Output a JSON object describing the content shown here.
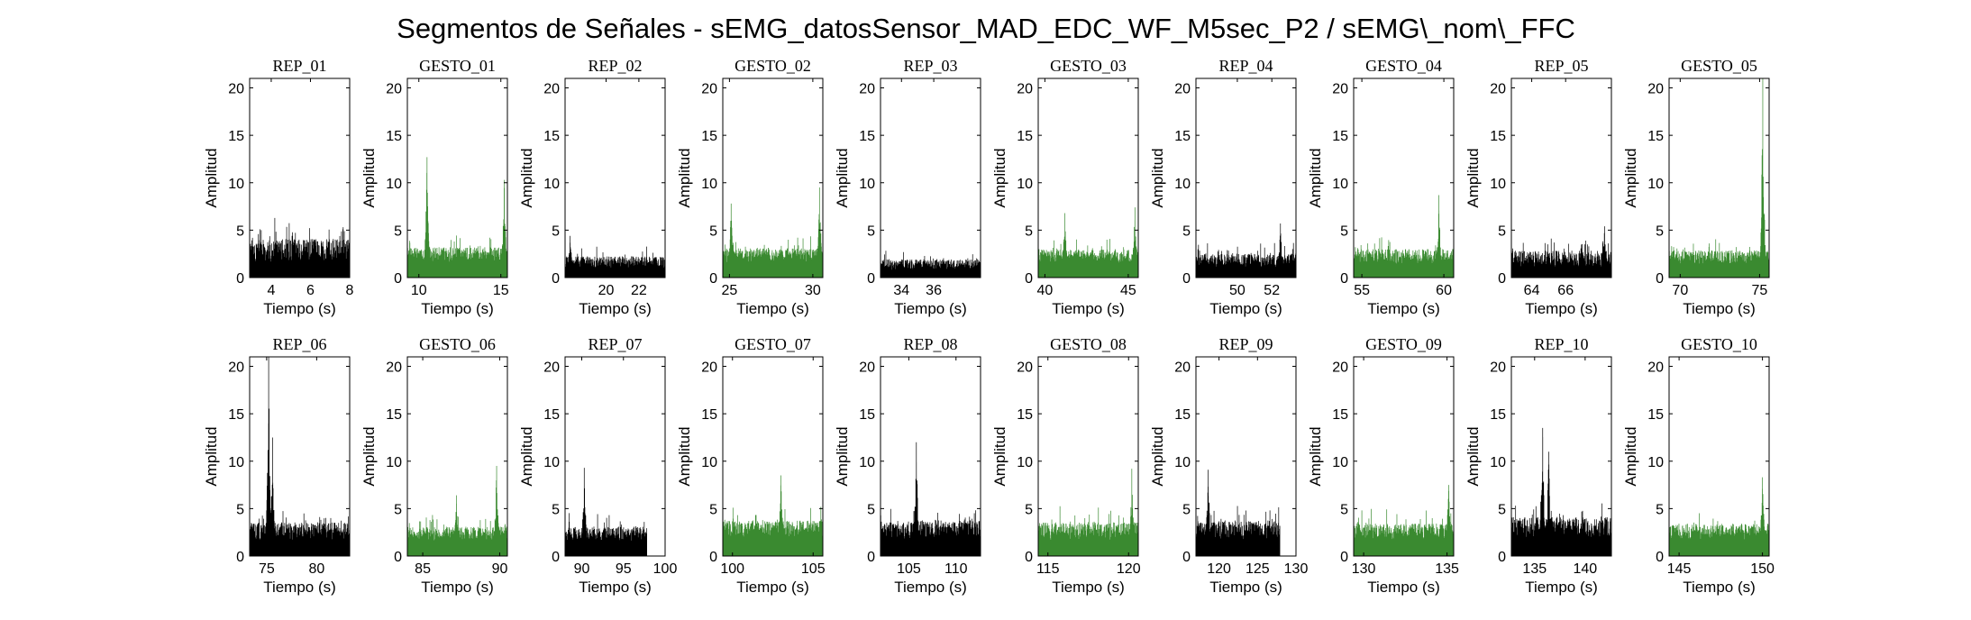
{
  "chart_data": {
    "type": "bar",
    "title": "Segmentos de Señales - sEMG_datosSensor_MAD_EDC_WF_M5sec_P2 / sEMG\\_nom\\_FFC",
    "xlabel": "Tiempo (s)",
    "ylabel": "Amplitud",
    "ylim": [
      0,
      21
    ],
    "yticks": [
      0,
      5,
      10,
      15,
      20
    ],
    "colors": {
      "REP": "#000000",
      "GESTO": "#3a8a30"
    },
    "panels": [
      {
        "title": "REP_01",
        "kind": "REP",
        "xlim": [
          2.9,
          8.0
        ],
        "xticks": [
          4,
          6,
          8
        ],
        "t_start": 2.9,
        "t_end": 8.0,
        "baseline": 2.0,
        "noise": 1.6,
        "bursts": []
      },
      {
        "title": "GESTO_01",
        "kind": "GESTO",
        "xlim": [
          9.3,
          15.4
        ],
        "xticks": [
          10,
          15
        ],
        "t_start": 9.3,
        "t_end": 15.4,
        "baseline": 1.9,
        "noise": 1.0,
        "bursts": [
          {
            "t": 10.5,
            "amp": 12.7
          },
          {
            "t": 15.2,
            "amp": 10.3
          }
        ]
      },
      {
        "title": "REP_02",
        "kind": "REP",
        "xlim": [
          17.5,
          23.6
        ],
        "xticks": [
          20,
          22
        ],
        "t_start": 17.5,
        "t_end": 23.6,
        "baseline": 1.2,
        "noise": 0.8,
        "bursts": [
          {
            "t": 17.8,
            "amp": 4.4
          }
        ]
      },
      {
        "title": "GESTO_02",
        "kind": "GESTO",
        "xlim": [
          24.6,
          30.6
        ],
        "xticks": [
          25,
          30
        ],
        "t_start": 24.6,
        "t_end": 30.6,
        "baseline": 1.9,
        "noise": 0.9,
        "bursts": [
          {
            "t": 25.1,
            "amp": 7.8
          },
          {
            "t": 30.4,
            "amp": 9.5
          }
        ]
      },
      {
        "title": "REP_03",
        "kind": "REP",
        "xlim": [
          32.7,
          38.9
        ],
        "xticks": [
          34,
          36
        ],
        "t_start": 32.7,
        "t_end": 38.9,
        "baseline": 1.0,
        "noise": 0.7,
        "bursts": []
      },
      {
        "title": "GESTO_03",
        "kind": "GESTO",
        "xlim": [
          39.6,
          45.6
        ],
        "xticks": [
          40,
          45
        ],
        "t_start": 39.6,
        "t_end": 45.6,
        "baseline": 1.8,
        "noise": 0.9,
        "bursts": [
          {
            "t": 41.2,
            "amp": 6.8
          },
          {
            "t": 45.4,
            "amp": 7.4
          }
        ]
      },
      {
        "title": "REP_04",
        "kind": "REP",
        "xlim": [
          47.6,
          53.4
        ],
        "xticks": [
          50,
          52
        ],
        "t_start": 47.6,
        "t_end": 53.4,
        "baseline": 1.3,
        "noise": 1.0,
        "bursts": [
          {
            "t": 52.5,
            "amp": 5.7
          }
        ]
      },
      {
        "title": "GESTO_04",
        "kind": "GESTO",
        "xlim": [
          54.5,
          60.6
        ],
        "xticks": [
          55,
          60
        ],
        "t_start": 54.5,
        "t_end": 60.6,
        "baseline": 1.7,
        "noise": 1.0,
        "bursts": [
          {
            "t": 59.7,
            "amp": 8.7
          }
        ]
      },
      {
        "title": "REP_05",
        "kind": "REP",
        "xlim": [
          62.8,
          68.7
        ],
        "xticks": [
          64,
          66
        ],
        "t_start": 62.8,
        "t_end": 68.7,
        "baseline": 1.4,
        "noise": 1.1,
        "bursts": [
          {
            "t": 68.3,
            "amp": 5.4
          }
        ]
      },
      {
        "title": "GESTO_05",
        "kind": "GESTO",
        "xlim": [
          69.3,
          75.6
        ],
        "xticks": [
          70,
          75
        ],
        "t_start": 69.3,
        "t_end": 75.6,
        "baseline": 1.7,
        "noise": 0.9,
        "bursts": [
          {
            "t": 75.2,
            "amp": 21.0
          }
        ]
      },
      {
        "title": "REP_06",
        "kind": "REP",
        "xlim": [
          73.3,
          83.3
        ],
        "xticks": [
          75,
          80
        ],
        "t_start": 73.3,
        "t_end": 83.3,
        "baseline": 2.0,
        "noise": 1.2,
        "bursts": [
          {
            "t": 75.2,
            "amp": 21.0
          },
          {
            "t": 75.6,
            "amp": 12.5
          }
        ]
      },
      {
        "title": "GESTO_06",
        "kind": "GESTO",
        "xlim": [
          84.0,
          90.5
        ],
        "xticks": [
          85,
          90
        ],
        "t_start": 84.0,
        "t_end": 90.5,
        "baseline": 1.8,
        "noise": 1.0,
        "bursts": [
          {
            "t": 89.8,
            "amp": 9.5
          },
          {
            "t": 87.2,
            "amp": 6.4
          }
        ]
      },
      {
        "title": "REP_07",
        "kind": "REP",
        "xlim": [
          88.0,
          100.0
        ],
        "xticks": [
          90,
          95,
          100
        ],
        "t_start": 88.0,
        "t_end": 97.8,
        "baseline": 1.8,
        "noise": 1.0,
        "bursts": [
          {
            "t": 90.3,
            "amp": 9.3
          }
        ]
      },
      {
        "title": "GESTO_07",
        "kind": "GESTO",
        "xlim": [
          99.4,
          105.6
        ],
        "xticks": [
          100,
          105
        ],
        "t_start": 99.4,
        "t_end": 105.6,
        "baseline": 2.2,
        "noise": 1.2,
        "bursts": [
          {
            "t": 103.0,
            "amp": 8.5
          }
        ]
      },
      {
        "title": "REP_08",
        "kind": "REP",
        "xlim": [
          102.0,
          112.6
        ],
        "xticks": [
          105,
          110
        ],
        "t_start": 102.0,
        "t_end": 112.6,
        "baseline": 2.2,
        "noise": 1.2,
        "bursts": [
          {
            "t": 105.8,
            "amp": 12.0
          }
        ]
      },
      {
        "title": "GESTO_08",
        "kind": "GESTO",
        "xlim": [
          114.4,
          120.6
        ],
        "xticks": [
          115,
          120
        ],
        "t_start": 114.4,
        "t_end": 120.6,
        "baseline": 2.0,
        "noise": 1.2,
        "bursts": [
          {
            "t": 120.2,
            "amp": 9.2
          }
        ]
      },
      {
        "title": "REP_09",
        "kind": "REP",
        "xlim": [
          117.0,
          130.0
        ],
        "xticks": [
          120,
          125,
          130
        ],
        "t_start": 117.0,
        "t_end": 127.9,
        "baseline": 2.0,
        "noise": 1.3,
        "bursts": [
          {
            "t": 118.6,
            "amp": 9.1
          }
        ]
      },
      {
        "title": "GESTO_09",
        "kind": "GESTO",
        "xlim": [
          129.4,
          135.4
        ],
        "xticks": [
          130,
          135
        ],
        "t_start": 129.4,
        "t_end": 135.4,
        "baseline": 2.0,
        "noise": 1.1,
        "bursts": [
          {
            "t": 135.1,
            "amp": 7.5
          }
        ]
      },
      {
        "title": "REP_10",
        "kind": "REP",
        "xlim": [
          132.7,
          142.6
        ],
        "xticks": [
          135,
          140
        ],
        "t_start": 132.7,
        "t_end": 142.6,
        "baseline": 2.3,
        "noise": 1.4,
        "bursts": [
          {
            "t": 135.8,
            "amp": 13.5
          },
          {
            "t": 136.4,
            "amp": 11.0
          }
        ]
      },
      {
        "title": "GESTO_10",
        "kind": "GESTO",
        "xlim": [
          144.4,
          150.4
        ],
        "xticks": [
          145,
          150
        ],
        "t_start": 144.4,
        "t_end": 150.4,
        "baseline": 2.0,
        "noise": 1.1,
        "bursts": [
          {
            "t": 150.0,
            "amp": 8.3
          }
        ]
      }
    ]
  }
}
